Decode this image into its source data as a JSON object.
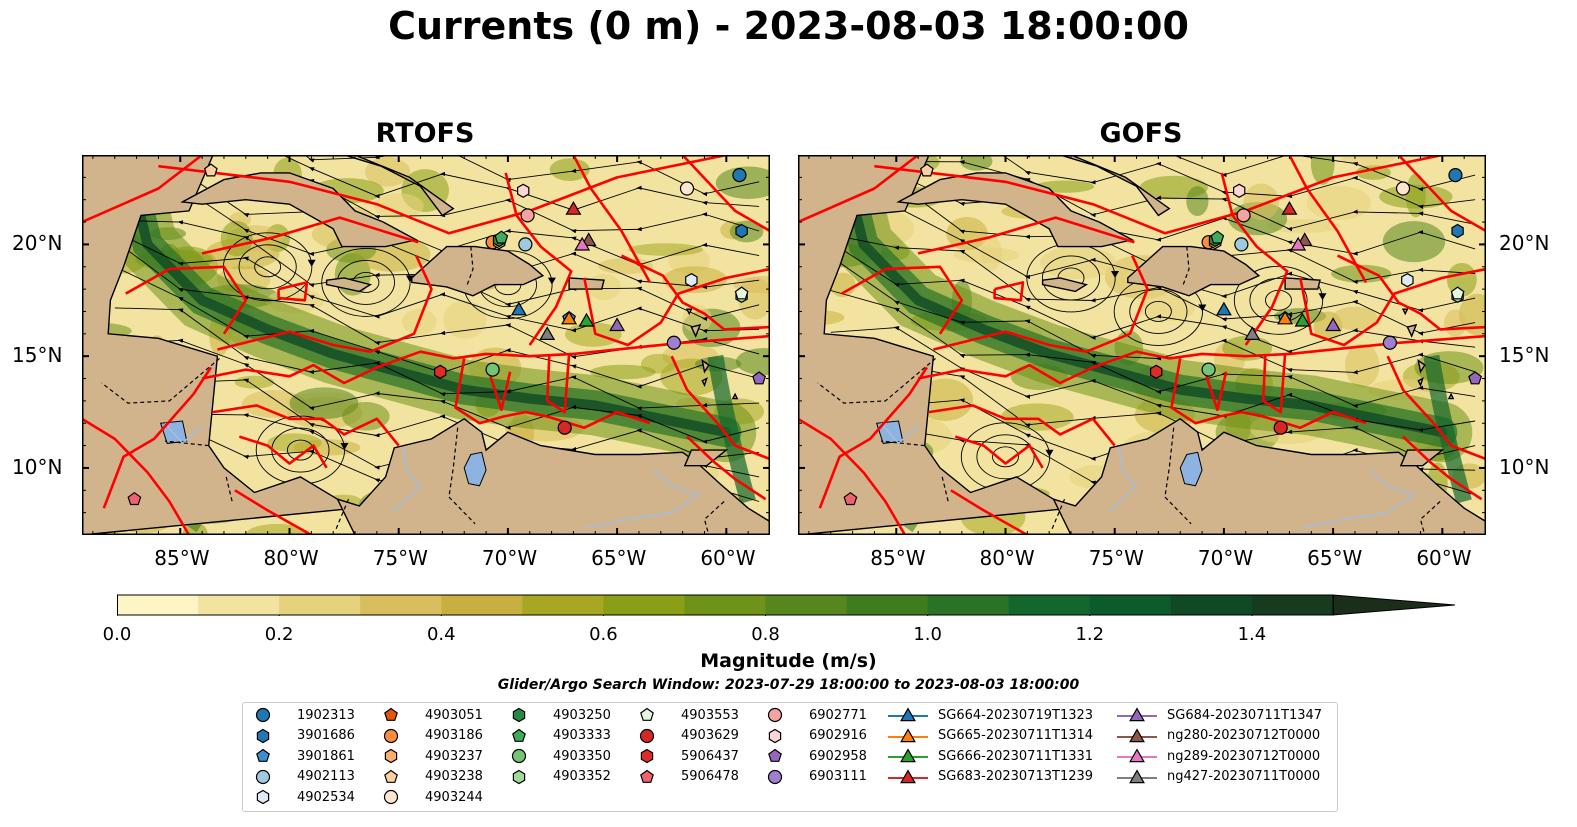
{
  "title": "Currents (0 m) - 2023-08-03 18:00:00",
  "panels": [
    {
      "id": "rtofs",
      "title": "RTOFS"
    },
    {
      "id": "gofs",
      "title": "GOFS"
    }
  ],
  "lon_ticks": [
    "85°W",
    "80°W",
    "75°W",
    "70°W",
    "65°W",
    "60°W"
  ],
  "lat_ticks": [
    "20°N",
    "15°N",
    "10°N"
  ],
  "colorbar": {
    "label": "Magnitude (m/s)",
    "ticks": [
      "0.0",
      "0.2",
      "0.4",
      "0.6",
      "0.8",
      "1.0",
      "1.2",
      "1.4"
    ],
    "colors": [
      "#fdf6c4",
      "#f2e4a0",
      "#e6d27c",
      "#d8be5c",
      "#c8b040",
      "#a7a724",
      "#8a9e16",
      "#6f9218",
      "#56861e",
      "#3f7c20",
      "#2a7226",
      "#14672c",
      "#0d5a2b",
      "#0f4a25",
      "#173b1f",
      "#1b2e19"
    ]
  },
  "search_window": "Glider/Argo Search Window: 2023-07-29 18:00:00 to 2023-08-03 18:00:00",
  "legend": [
    {
      "label": "1902313",
      "marker": "circle",
      "color": "#1f77b4"
    },
    {
      "label": "3901686",
      "marker": "hexagon",
      "color": "#1f77b4"
    },
    {
      "label": "3901861",
      "marker": "pentagon",
      "color": "#3b8fd0"
    },
    {
      "label": "4902113",
      "marker": "circle",
      "color": "#9ecae1"
    },
    {
      "label": "4902534",
      "marker": "hexagon",
      "color": "#deebf7"
    },
    {
      "label": "4903051",
      "marker": "pentagon",
      "color": "#e6550d"
    },
    {
      "label": "4903186",
      "marker": "circle",
      "color": "#fd8d3c"
    },
    {
      "label": "4903237",
      "marker": "hexagon",
      "color": "#fdae6b"
    },
    {
      "label": "4903238",
      "marker": "pentagon",
      "color": "#fdd0a2"
    },
    {
      "label": "4903244",
      "marker": "circle",
      "color": "#fee6ce"
    },
    {
      "label": "4903250",
      "marker": "hexagon",
      "color": "#238b45"
    },
    {
      "label": "4903333",
      "marker": "pentagon",
      "color": "#41ab5d"
    },
    {
      "label": "4903350",
      "marker": "circle",
      "color": "#74c476"
    },
    {
      "label": "4903352",
      "marker": "hexagon",
      "color": "#a1d99b"
    },
    {
      "label": "4903553",
      "marker": "pentagon",
      "color": "#e5f5e0"
    },
    {
      "label": "4903629",
      "marker": "circle",
      "color": "#d62728"
    },
    {
      "label": "5906437",
      "marker": "hexagon",
      "color": "#de2d26"
    },
    {
      "label": "5906478",
      "marker": "pentagon",
      "color": "#f0626e"
    },
    {
      "label": "6902771",
      "marker": "circle",
      "color": "#f4a3a0"
    },
    {
      "label": "6902916",
      "marker": "hexagon",
      "color": "#fcd5d5"
    },
    {
      "label": "6902958",
      "marker": "pentagon",
      "color": "#9467bd"
    },
    {
      "label": "6903111",
      "marker": "circle",
      "color": "#9f7fd0"
    },
    {
      "label": "SG664-20230719T1323",
      "marker": "triangle-line",
      "color": "#1f77b4"
    },
    {
      "label": "SG665-20230711T1314",
      "marker": "triangle-line",
      "color": "#ff7f0e"
    },
    {
      "label": "SG666-20230711T1331",
      "marker": "triangle-line",
      "color": "#2ca02c"
    },
    {
      "label": "SG683-20230713T1239",
      "marker": "triangle-line",
      "color": "#d62728"
    },
    {
      "label": "SG684-20230711T1347",
      "marker": "triangle-line",
      "color": "#9467bd"
    },
    {
      "label": "ng280-20230712T0000",
      "marker": "triangle-line",
      "color": "#8c564b"
    },
    {
      "label": "ng289-20230712T0000",
      "marker": "triangle-line",
      "color": "#e377c2"
    },
    {
      "label": "ng427-20230711T0000",
      "marker": "triangle-line",
      "color": "#7f7f7f"
    }
  ],
  "map_extent": {
    "lon": [
      -89.5,
      -58
    ],
    "lat": [
      7,
      24
    ]
  },
  "colors": {
    "land": "#d2b48c",
    "boundary": "#ff0000",
    "lake": "#8fb3e0",
    "river": "#a6bddb"
  }
}
